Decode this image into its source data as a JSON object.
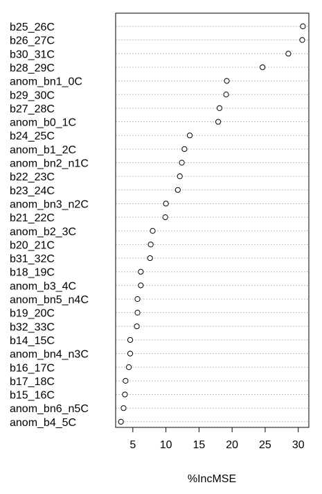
{
  "chart_data": {
    "type": "scatter",
    "subtype": "dotchart",
    "xlabel": "%IncMSE",
    "ylabel": "",
    "xlim": [
      2.4,
      31.6
    ],
    "x_ticks": [
      5,
      10,
      15,
      20,
      25,
      30
    ],
    "grid": "dotted horizontal lines per row",
    "categories": [
      "b25_26C",
      "b26_27C",
      "b30_31C",
      "b28_29C",
      "anom_bn1_0C",
      "b29_30C",
      "b27_28C",
      "anom_b0_1C",
      "b24_25C",
      "anom_b1_2C",
      "anom_bn2_n1C",
      "b22_23C",
      "b23_24C",
      "anom_bn3_n2C",
      "b21_22C",
      "anom_b2_3C",
      "b20_21C",
      "b31_32C",
      "b18_19C",
      "anom_b3_4C",
      "anom_bn5_n4C",
      "b19_20C",
      "b32_33C",
      "b14_15C",
      "anom_bn4_n3C",
      "b16_17C",
      "b17_18C",
      "b15_16C",
      "anom_bn6_n5C",
      "anom_b4_5C"
    ],
    "values": [
      30.7,
      30.6,
      28.5,
      24.6,
      19.2,
      19.1,
      18.1,
      17.9,
      13.6,
      12.8,
      12.4,
      12.1,
      11.8,
      10.0,
      9.9,
      8.0,
      7.7,
      7.6,
      6.2,
      6.2,
      5.7,
      5.7,
      5.6,
      4.6,
      4.6,
      4.4,
      3.9,
      3.8,
      3.6,
      3.2
    ]
  }
}
